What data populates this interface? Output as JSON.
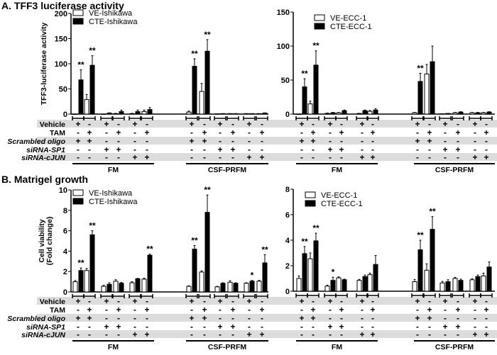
{
  "panels": {
    "a_title": "A. TFF3 luciferase activity",
    "b_title": "B. Matrigel growth"
  },
  "treatment_rows": [
    "Vehicle",
    "TAM",
    "Scrambled oligo",
    "siRNA-SP1",
    "siRNA-cJUN"
  ],
  "row_italic": [
    false,
    false,
    true,
    true,
    true
  ],
  "conditions": [
    [
      "+",
      "-",
      "+",
      "-",
      "-"
    ],
    [
      "-",
      "+",
      "+",
      "-",
      "-"
    ],
    [
      "+",
      "-",
      "-",
      "+",
      "-"
    ],
    [
      "-",
      "+",
      "-",
      "+",
      "-"
    ],
    [
      "+",
      "-",
      "-",
      "-",
      "+"
    ],
    [
      "-",
      "+",
      "-",
      "-",
      "+"
    ]
  ],
  "media": [
    "FM",
    "CSF-PRFM"
  ],
  "colors": {
    "ve": "#ffffff",
    "cte": "#000000",
    "band": "#dcdcdc"
  },
  "chart_data": [
    {
      "type": "bar",
      "panel": "A",
      "title": "A. TFF3 luciferase activity",
      "ylabel": [
        "TFF3-luciferase activity"
      ],
      "ylim": [
        0,
        200
      ],
      "yticks": [
        0,
        50,
        100,
        150,
        200
      ],
      "legend": [
        "VE-Ishikawa",
        "CTE-Ishikawa"
      ],
      "legend_position": "top-left",
      "categories": [
        "FM Vehicle",
        "FM TAM",
        "FM siSP1+Vehicle",
        "FM siSP1+TAM",
        "FM sicJUN+Vehicle",
        "FM sicJUN+TAM",
        "CSF-PRFM Vehicle",
        "CSF-PRFM TAM",
        "CSF-PRFM siSP1+Vehicle",
        "CSF-PRFM siSP1+TAM",
        "CSF-PRFM sicJUN+Vehicle",
        "CSF-PRFM sicJUN+TAM"
      ],
      "series": [
        {
          "name": "VE-Ishikawa",
          "values": [
            0,
            29,
            0,
            1,
            1,
            5,
            4,
            45,
            0.5,
            1,
            1,
            1
          ],
          "errors": [
            0,
            10,
            0,
            0.5,
            0.5,
            3,
            2,
            16,
            0,
            0,
            0,
            0
          ],
          "sig": [
            "",
            "",
            "",
            "",
            "",
            "",
            "",
            "",
            "",
            "",
            "",
            ""
          ]
        },
        {
          "name": "CTE-Ishikawa",
          "values": [
            68,
            97,
            2,
            5,
            5,
            9,
            95,
            125,
            1,
            1,
            1,
            2
          ],
          "errors": [
            20,
            19,
            0.5,
            3,
            3,
            4,
            15,
            23,
            0,
            0,
            0,
            0.5
          ],
          "sig": [
            "**",
            "**",
            "",
            "",
            "",
            "",
            "**",
            "**",
            "",
            "",
            "",
            ""
          ]
        }
      ]
    },
    {
      "type": "bar",
      "panel": "A",
      "ylabel": [],
      "ylim": [
        0,
        150
      ],
      "yticks": [
        0,
        50,
        100,
        150
      ],
      "legend": [
        "VE-ECC-1",
        "CTE-ECC-1"
      ],
      "legend_position": "top-left",
      "categories": [
        "FM Vehicle",
        "FM TAM",
        "FM siSP1+Vehicle",
        "FM siSP1+TAM",
        "FM sicJUN+Vehicle",
        "FM sicJUN+TAM",
        "CSF-PRFM Vehicle",
        "CSF-PRFM TAM",
        "CSF-PRFM siSP1+Vehicle",
        "CSF-PRFM siSP1+TAM",
        "CSF-PRFM sicJUN+Vehicle",
        "CSF-PRFM sicJUN+TAM"
      ],
      "series": [
        {
          "name": "VE-ECC-1",
          "values": [
            0,
            15,
            1,
            2,
            1,
            4,
            2,
            59,
            0.5,
            2,
            2,
            2
          ],
          "errors": [
            0,
            4,
            0.5,
            0.5,
            0,
            1.5,
            0.5,
            14,
            0,
            0.5,
            0.5,
            0.5
          ],
          "sig": [
            "",
            "",
            "",
            "",
            "",
            "",
            "",
            "",
            "",
            "",
            "",
            ""
          ]
        },
        {
          "name": "CTE-ECC-1",
          "values": [
            40,
            72,
            2,
            5,
            5,
            6,
            48,
            77,
            1,
            3,
            2,
            3
          ],
          "errors": [
            12,
            21,
            0.5,
            1,
            1,
            2,
            12,
            23,
            0,
            0.5,
            0.5,
            0.5
          ],
          "sig": [
            "**",
            "**",
            "",
            "",
            "",
            "",
            "**",
            "",
            "",
            "",
            "",
            ""
          ]
        }
      ]
    },
    {
      "type": "bar",
      "panel": "B",
      "title": "B. Matrigel growth",
      "ylabel": [
        "Cell viability",
        "(Fold change)"
      ],
      "ylim": [
        0,
        10
      ],
      "yticks": [
        0,
        2,
        4,
        6,
        8,
        10
      ],
      "legend": [
        "VE-Ishikawa",
        "CTE-Ishikawa"
      ],
      "legend_position": "top-left",
      "categories": [
        "FM Vehicle",
        "FM TAM",
        "FM siSP1+Vehicle",
        "FM siSP1+TAM",
        "FM sicJUN+Vehicle",
        "FM sicJUN+TAM",
        "CSF-PRFM Vehicle",
        "CSF-PRFM TAM",
        "CSF-PRFM siSP1+Vehicle",
        "CSF-PRFM siSP1+TAM",
        "CSF-PRFM sicJUN+Vehicle",
        "CSF-PRFM sicJUN+TAM"
      ],
      "series": [
        {
          "name": "VE-Ishikawa",
          "values": [
            1.0,
            2.1,
            0.55,
            1.05,
            0.9,
            1.25,
            0.55,
            1.95,
            0.5,
            0.95,
            0.85,
            1.05
          ],
          "errors": [
            0.12,
            0.2,
            0.1,
            0.15,
            0.1,
            0.1,
            0.05,
            0.12,
            0.05,
            0.15,
            0.05,
            0.08
          ],
          "sig": [
            "",
            "",
            "",
            "",
            "",
            "",
            "",
            "",
            "",
            "",
            "",
            ""
          ]
        },
        {
          "name": "CTE-Ishikawa",
          "values": [
            2.1,
            5.6,
            0.75,
            0.85,
            1.3,
            3.6,
            4.2,
            7.8,
            0.85,
            0.85,
            1.05,
            2.85
          ],
          "errors": [
            0.25,
            0.4,
            0.15,
            0.08,
            0.03,
            0.1,
            0.35,
            1.7,
            0.05,
            0.05,
            0.08,
            0.8
          ],
          "sig": [
            "**",
            "**",
            "",
            "",
            "",
            "**",
            "**",
            "**",
            "",
            "",
            "*",
            "**"
          ]
        }
      ]
    },
    {
      "type": "bar",
      "panel": "B",
      "ylabel": [],
      "ylim": [
        0,
        8
      ],
      "yticks": [
        0,
        2,
        4,
        6,
        8
      ],
      "legend": [
        "VE-ECC-1",
        "CTE-ECC-1"
      ],
      "legend_position": "top-left",
      "categories": [
        "FM Vehicle",
        "FM TAM",
        "FM siSP1+Vehicle",
        "FM siSP1+TAM",
        "FM sicJUN+Vehicle",
        "FM sicJUN+TAM",
        "CSF-PRFM Vehicle",
        "CSF-PRFM TAM",
        "CSF-PRFM siSP1+Vehicle",
        "CSF-PRFM siSP1+TAM",
        "CSF-PRFM sicJUN+Vehicle",
        "CSF-PRFM sicJUN+TAM"
      ],
      "series": [
        {
          "name": "VE-ECC-1",
          "values": [
            1.0,
            2.55,
            0.4,
            1.05,
            0.85,
            1.3,
            0.75,
            1.65,
            0.65,
            1.0,
            0.9,
            1.2
          ],
          "errors": [
            0.2,
            0.45,
            0.08,
            0.08,
            0.08,
            0.12,
            0.18,
            0.5,
            0.12,
            0.08,
            0.08,
            0.22
          ],
          "sig": [
            "",
            "",
            "",
            "",
            "",
            "",
            "",
            "",
            "",
            "",
            "",
            ""
          ]
        },
        {
          "name": "CTE-ECC-1",
          "values": [
            2.95,
            3.95,
            0.85,
            0.9,
            1.15,
            2.1,
            3.25,
            4.85,
            0.75,
            0.85,
            1.15,
            1.9
          ],
          "errors": [
            0.55,
            0.6,
            0.25,
            0.05,
            0.12,
            0.7,
            0.75,
            1.0,
            0.15,
            0.1,
            0.12,
            0.4
          ],
          "sig": [
            "**",
            "**",
            "*",
            "",
            "",
            "",
            "**",
            "**",
            "",
            "",
            "",
            ""
          ]
        }
      ]
    }
  ]
}
